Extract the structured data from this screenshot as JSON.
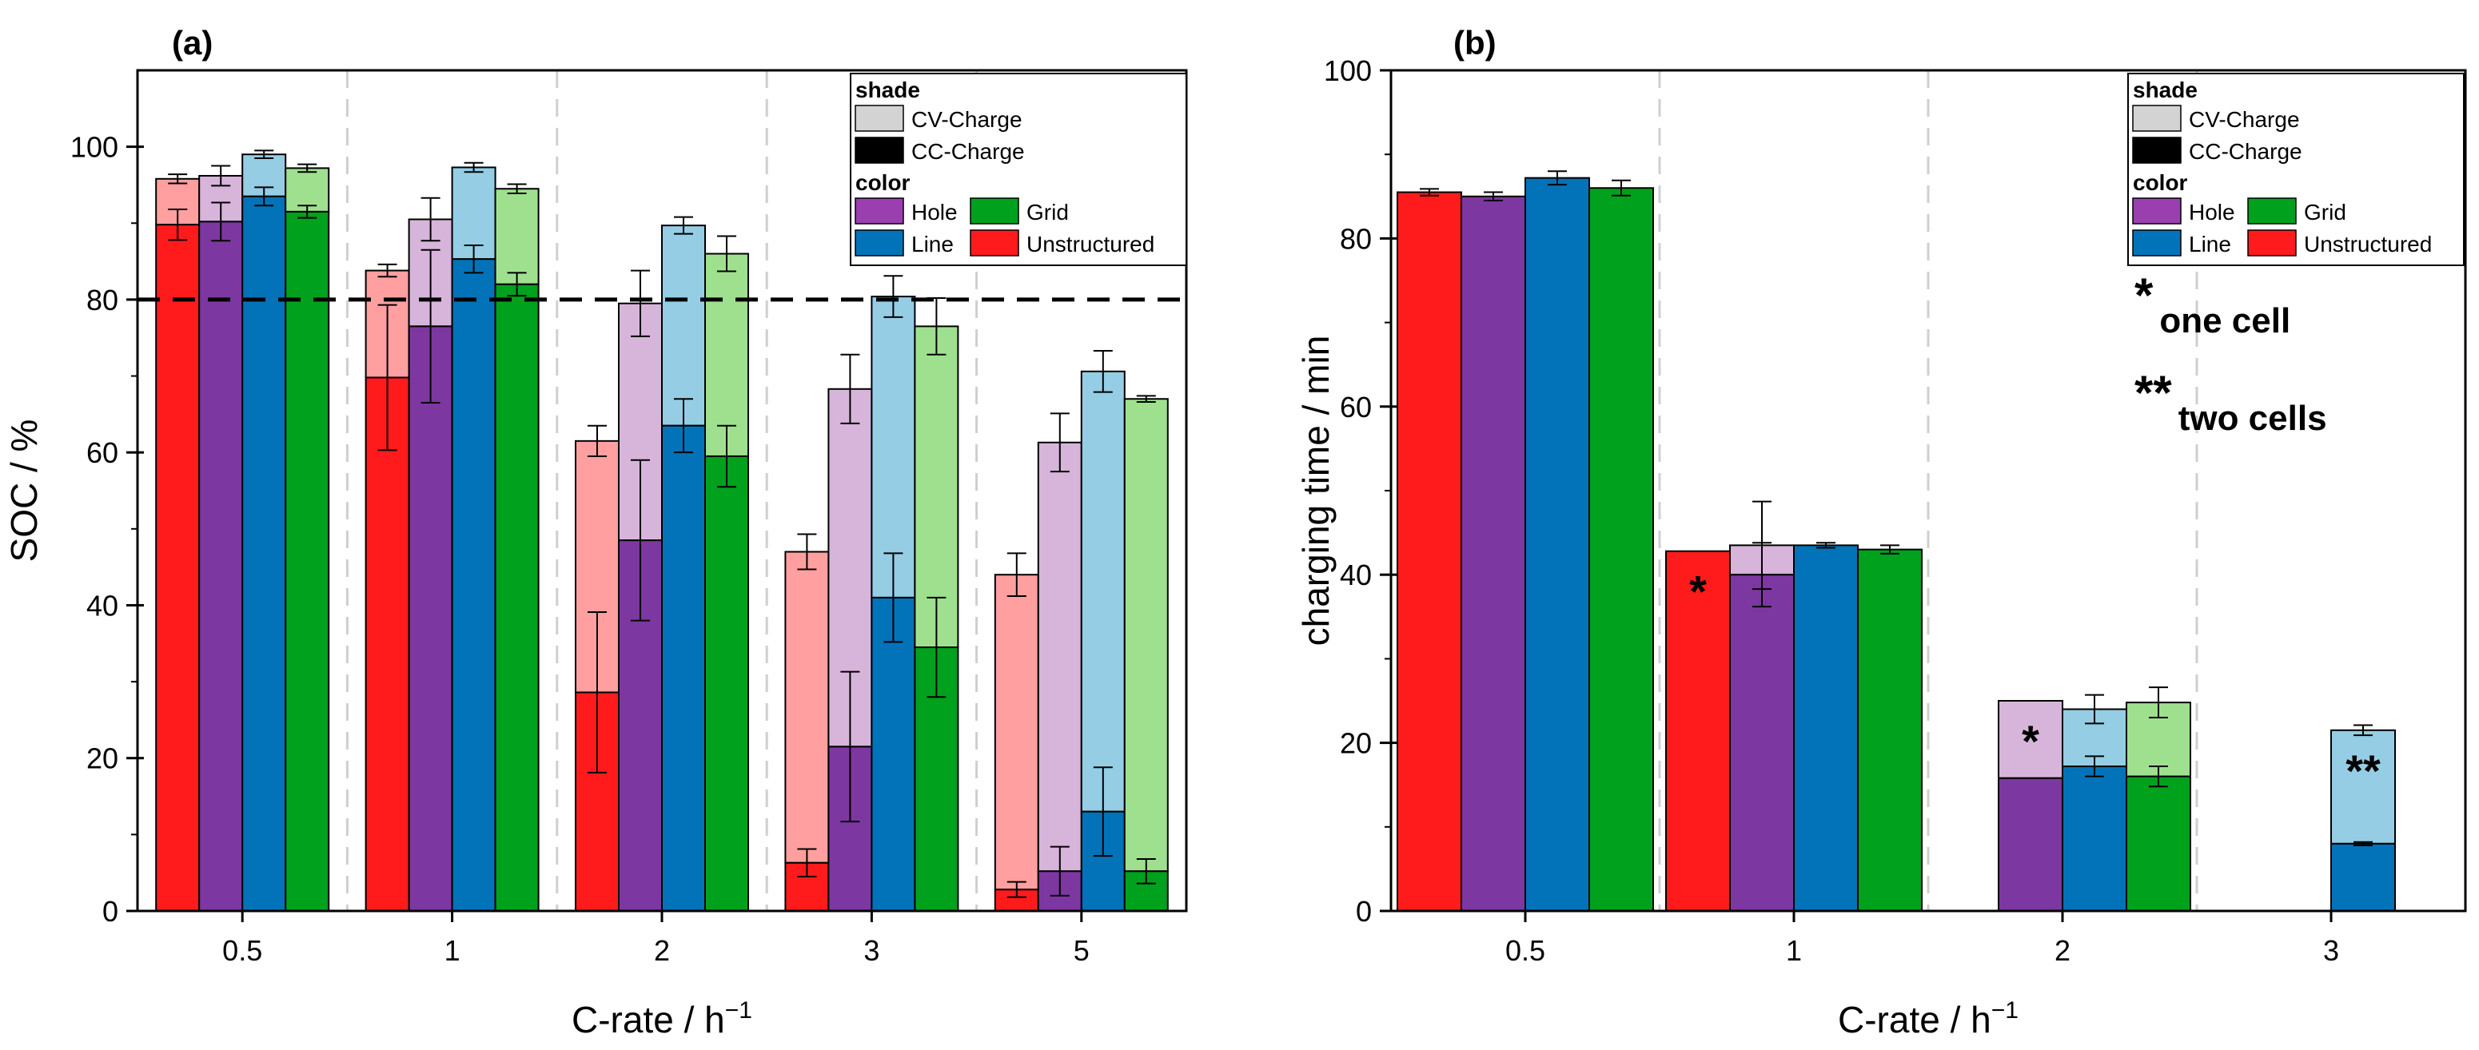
{
  "colors": {
    "Unstructured": {
      "cc": "#ff1b1b",
      "cv": "#ff9f9f"
    },
    "Hole": {
      "cc": "#7c38a0",
      "cv": "#d7b5da"
    },
    "Line": {
      "cc": "#0373b9",
      "cv": "#95cde5"
    },
    "Grid": {
      "cc": "#00a11c",
      "cv": "#9fe08f"
    },
    "cv_swatch": "#d3d3d3",
    "cc_swatch": "#000000",
    "hole_swatch": "#9b3fb0"
  },
  "legend": {
    "shade_title": "shade",
    "cv_label": "CV-Charge",
    "cc_label": "CC-Charge",
    "color_title": "color",
    "hole": "Hole",
    "grid": "Grid",
    "line": "Line",
    "unstructured": "Unstructured"
  },
  "chart_data": [
    {
      "panel": "(a)",
      "type": "bar",
      "stacked": true,
      "xlabel": "C-rate / h",
      "xlabel_sup": "−1",
      "ylabel": "SOC / %",
      "ylim": [
        0,
        110
      ],
      "yticks": [
        0,
        20,
        40,
        60,
        80,
        100
      ],
      "categories": [
        "0.5",
        "1",
        "2",
        "3",
        "5"
      ],
      "reference_line": 80,
      "series": [
        {
          "name": "Unstructured",
          "cc": [
            89.8,
            69.8,
            28.6,
            6.3,
            2.8
          ],
          "cc_err": [
            2.0,
            9.5,
            10.5,
            1.8,
            1.0
          ],
          "total": [
            95.8,
            83.8,
            61.5,
            47.0,
            44.0
          ],
          "total_err": [
            0.6,
            0.8,
            2.0,
            2.3,
            2.8
          ]
        },
        {
          "name": "Hole",
          "cc": [
            90.2,
            76.5,
            48.5,
            21.5,
            5.2
          ],
          "cc_err": [
            2.5,
            10.0,
            10.5,
            9.8,
            3.2
          ],
          "total": [
            96.2,
            90.5,
            79.5,
            68.3,
            61.3
          ],
          "total_err": [
            1.3,
            2.8,
            4.3,
            4.5,
            3.8
          ]
        },
        {
          "name": "Line",
          "cc": [
            93.5,
            85.3,
            63.5,
            41.0,
            13.0
          ],
          "cc_err": [
            1.2,
            1.8,
            3.5,
            5.8,
            5.8
          ],
          "total": [
            99.0,
            97.3,
            89.7,
            80.4,
            70.6
          ],
          "total_err": [
            0.5,
            0.6,
            1.1,
            2.7,
            2.7
          ]
        },
        {
          "name": "Grid",
          "cc": [
            91.5,
            82.0,
            59.5,
            34.5,
            5.2
          ],
          "cc_err": [
            0.8,
            1.5,
            4.0,
            6.5,
            1.6
          ],
          "total": [
            97.2,
            94.5,
            86.0,
            76.5,
            67.0
          ],
          "total_err": [
            0.5,
            0.6,
            2.3,
            3.7,
            0.4
          ]
        }
      ]
    },
    {
      "panel": "(b)",
      "type": "bar",
      "stacked": true,
      "xlabel": "C-rate / h",
      "xlabel_sup": "−1",
      "ylabel": "charging time / min",
      "ylim": [
        0,
        100
      ],
      "yticks": [
        0,
        20,
        40,
        60,
        80,
        100
      ],
      "categories": [
        "0.5",
        "1",
        "2",
        "3"
      ],
      "series": [
        {
          "name": "Unstructured",
          "cc": [
            85.5,
            42.8,
            null,
            null
          ],
          "cc_err": [
            0.4,
            null,
            null,
            null
          ],
          "total": [
            85.5,
            42.8,
            null,
            null
          ],
          "total_err": [
            null,
            null,
            null,
            null
          ]
        },
        {
          "name": "Hole",
          "cc": [
            85.0,
            40.0,
            15.8,
            null
          ],
          "cc_err": [
            0.5,
            3.8,
            null,
            null
          ],
          "total": [
            85.0,
            43.5,
            25.0,
            null
          ],
          "total_err": [
            null,
            5.2,
            null,
            null
          ]
        },
        {
          "name": "Line",
          "cc": [
            87.2,
            43.5,
            17.2,
            8.0
          ],
          "cc_err": [
            0.8,
            0.3,
            1.2,
            0.2
          ],
          "total": [
            87.2,
            43.5,
            24.0,
            21.5
          ],
          "total_err": [
            null,
            null,
            1.7,
            0.6
          ]
        },
        {
          "name": "Grid",
          "cc": [
            86.0,
            43.0,
            16.0,
            null
          ],
          "cc_err": [
            0.9,
            0.5,
            1.2,
            null
          ],
          "total": [
            86.0,
            43.0,
            24.8,
            null
          ],
          "total_err": [
            null,
            null,
            1.8,
            null
          ]
        }
      ],
      "annotations": [
        {
          "text": "*",
          "category": "1",
          "series": "Unstructured"
        },
        {
          "text": "*",
          "category": "2",
          "series": "Hole"
        },
        {
          "text": "**",
          "category": "3",
          "series": "Line"
        }
      ],
      "notes": [
        {
          "star": "*",
          "text": "one cell"
        },
        {
          "star": "**",
          "text": "two cells"
        }
      ]
    }
  ]
}
